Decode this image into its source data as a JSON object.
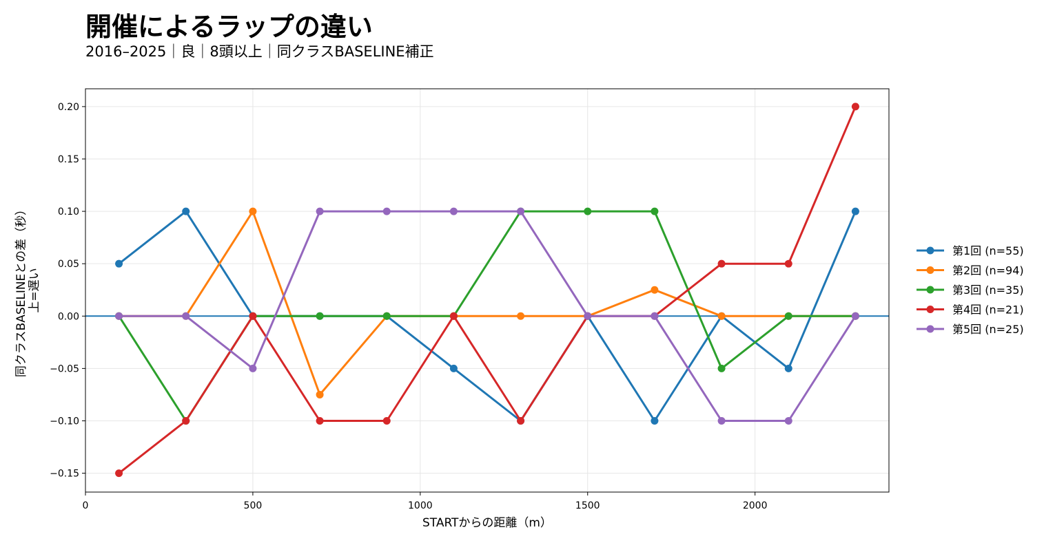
{
  "chart_data": {
    "type": "line",
    "title": "開催によるラップの違い",
    "subtitle": "2016–2025｜良｜8頭以上｜同クラスBASELINE補正",
    "xlabel": "STARTからの距離（m）",
    "ylabel_lines": [
      "同クラスBASELINEとの差（秒）",
      "上=遅い"
    ],
    "xlim": [
      0,
      2400
    ],
    "ylim": [
      -0.168,
      0.217
    ],
    "xticks": [
      0,
      500,
      1000,
      1500,
      2000
    ],
    "yticks": [
      0.2,
      0.15,
      0.1,
      0.05,
      0.0,
      -0.05,
      -0.1,
      -0.15
    ],
    "ytick_labels": [
      "0.20",
      "0.15",
      "0.10",
      "0.05",
      "0.00",
      "−0.05",
      "−0.10",
      "−0.15"
    ],
    "grid": true,
    "legend_position": "right-outside",
    "baseline": {
      "y": 0,
      "color": "#1f77b4"
    },
    "x": [
      100,
      300,
      500,
      700,
      900,
      1100,
      1300,
      1500,
      1700,
      1900,
      2100,
      2300
    ],
    "series": [
      {
        "name": "第1回 (n=55)",
        "color": "#1f77b4",
        "values": [
          0.05,
          0.1,
          0.0,
          0.0,
          0.0,
          -0.05,
          -0.1,
          0.0,
          -0.1,
          0.0,
          -0.05,
          0.1
        ]
      },
      {
        "name": "第2回 (n=94)",
        "color": "#ff7f0e",
        "values": [
          0.0,
          0.0,
          0.1,
          -0.075,
          0.0,
          0.0,
          0.0,
          0.0,
          0.025,
          0.0,
          0.0,
          0.0
        ]
      },
      {
        "name": "第3回 (n=35)",
        "color": "#2ca02c",
        "values": [
          0.0,
          -0.1,
          0.0,
          0.0,
          0.0,
          0.0,
          0.1,
          0.1,
          0.1,
          -0.05,
          0.0,
          0.0
        ]
      },
      {
        "name": "第4回 (n=21)",
        "color": "#d62728",
        "values": [
          -0.15,
          -0.1,
          0.0,
          -0.1,
          -0.1,
          0.0,
          -0.1,
          0.0,
          0.0,
          0.05,
          0.05,
          0.2
        ]
      },
      {
        "name": "第5回 (n=25)",
        "color": "#9467bd",
        "values": [
          0.0,
          0.0,
          -0.05,
          0.1,
          0.1,
          0.1,
          0.1,
          0.0,
          0.0,
          -0.1,
          -0.1,
          0.0
        ]
      }
    ]
  }
}
